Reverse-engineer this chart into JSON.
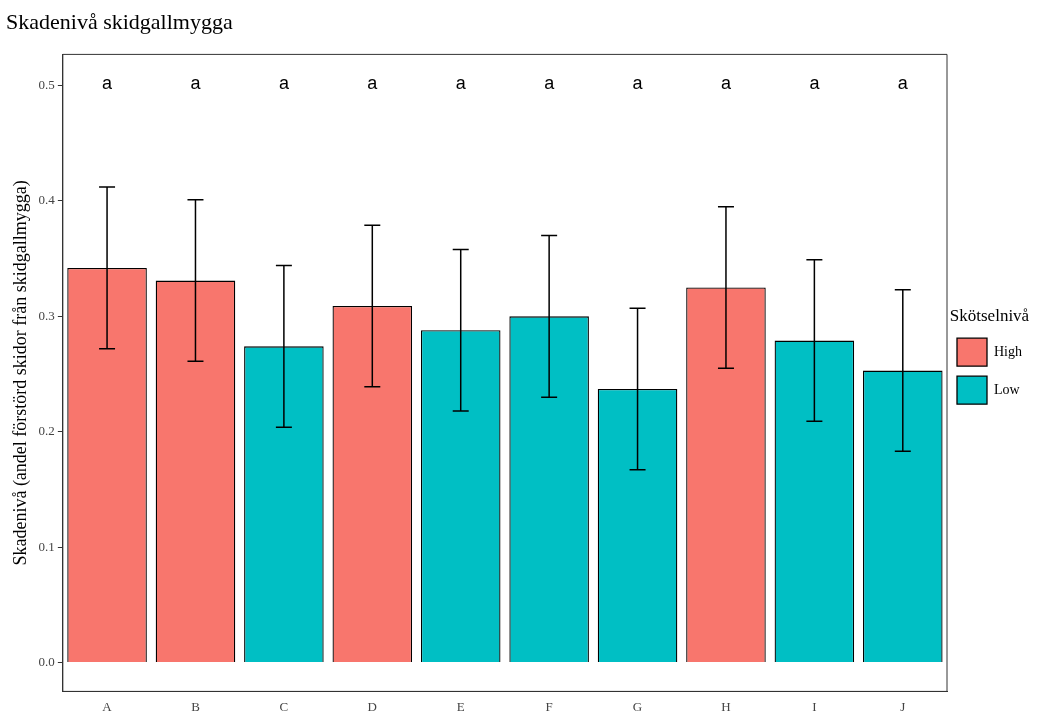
{
  "chart_data": {
    "type": "bar",
    "title": "Skadenivå skidgallmygga",
    "ylabel": "Skadenivå (andel förstörd skidor från skidgallmygga)",
    "legend_title": "Skötselnivå",
    "legend": "right",
    "grid": false,
    "categories": [
      "A",
      "B",
      "C",
      "D",
      "E",
      "F",
      "G",
      "H",
      "I",
      "J"
    ],
    "series": [
      {
        "name": "High",
        "color": "#f8766d",
        "values": [
          0.342,
          0.331,
          null,
          0.309,
          null,
          null,
          null,
          0.325,
          null,
          null
        ],
        "errors": [
          0.07,
          0.07,
          null,
          0.07,
          null,
          null,
          null,
          0.07,
          null,
          null
        ]
      },
      {
        "name": "Low",
        "color": "#00bfc4",
        "values": [
          null,
          null,
          0.274,
          null,
          0.288,
          0.3,
          0.237,
          null,
          0.279,
          0.253
        ],
        "errors": [
          null,
          null,
          0.07,
          null,
          0.07,
          0.07,
          0.07,
          null,
          0.07,
          0.07
        ]
      }
    ],
    "ylim": [
      -0.025,
      0.527
    ],
    "yticks": [
      {
        "value": 0,
        "label": "0.0"
      },
      0.1,
      0.2,
      0.3,
      0.4,
      0.5
    ],
    "annotations": [
      "a",
      "a",
      "a",
      "a",
      "a",
      "a",
      "a",
      "a",
      "a",
      "a"
    ]
  }
}
